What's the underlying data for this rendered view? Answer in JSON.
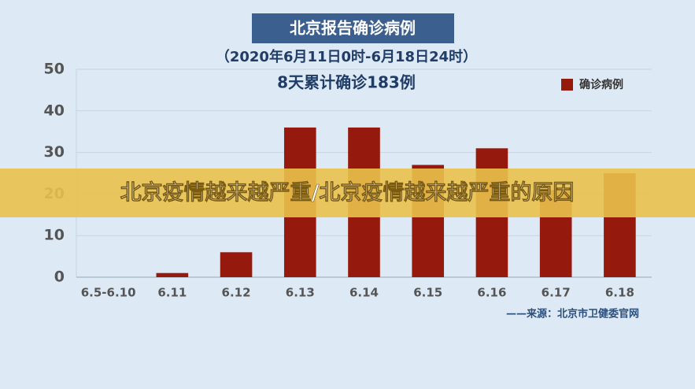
{
  "chart_data": {
    "type": "bar",
    "title": "北京报告确诊病例",
    "subtitle": "（2020年6月11日0时-6月18日24时）",
    "annotation": "8天累计确诊183例",
    "source": "——来源：北京市卫健委官网",
    "banner": "北京疫情越来越严重/北京疫情越来越严重的原因",
    "categories": [
      "6.5-6.10",
      "6.11",
      "6.12",
      "6.13",
      "6.14",
      "6.15",
      "6.16",
      "6.17",
      "6.18"
    ],
    "series": [
      {
        "name": "确诊病例",
        "color": "#96190e",
        "values": [
          0,
          1,
          6,
          36,
          36,
          27,
          31,
          21,
          25
        ]
      }
    ],
    "ylim": [
      0,
      50
    ],
    "yticks": [
      0,
      10,
      20,
      30,
      40,
      50
    ],
    "grid": true,
    "legend": "top-right"
  }
}
